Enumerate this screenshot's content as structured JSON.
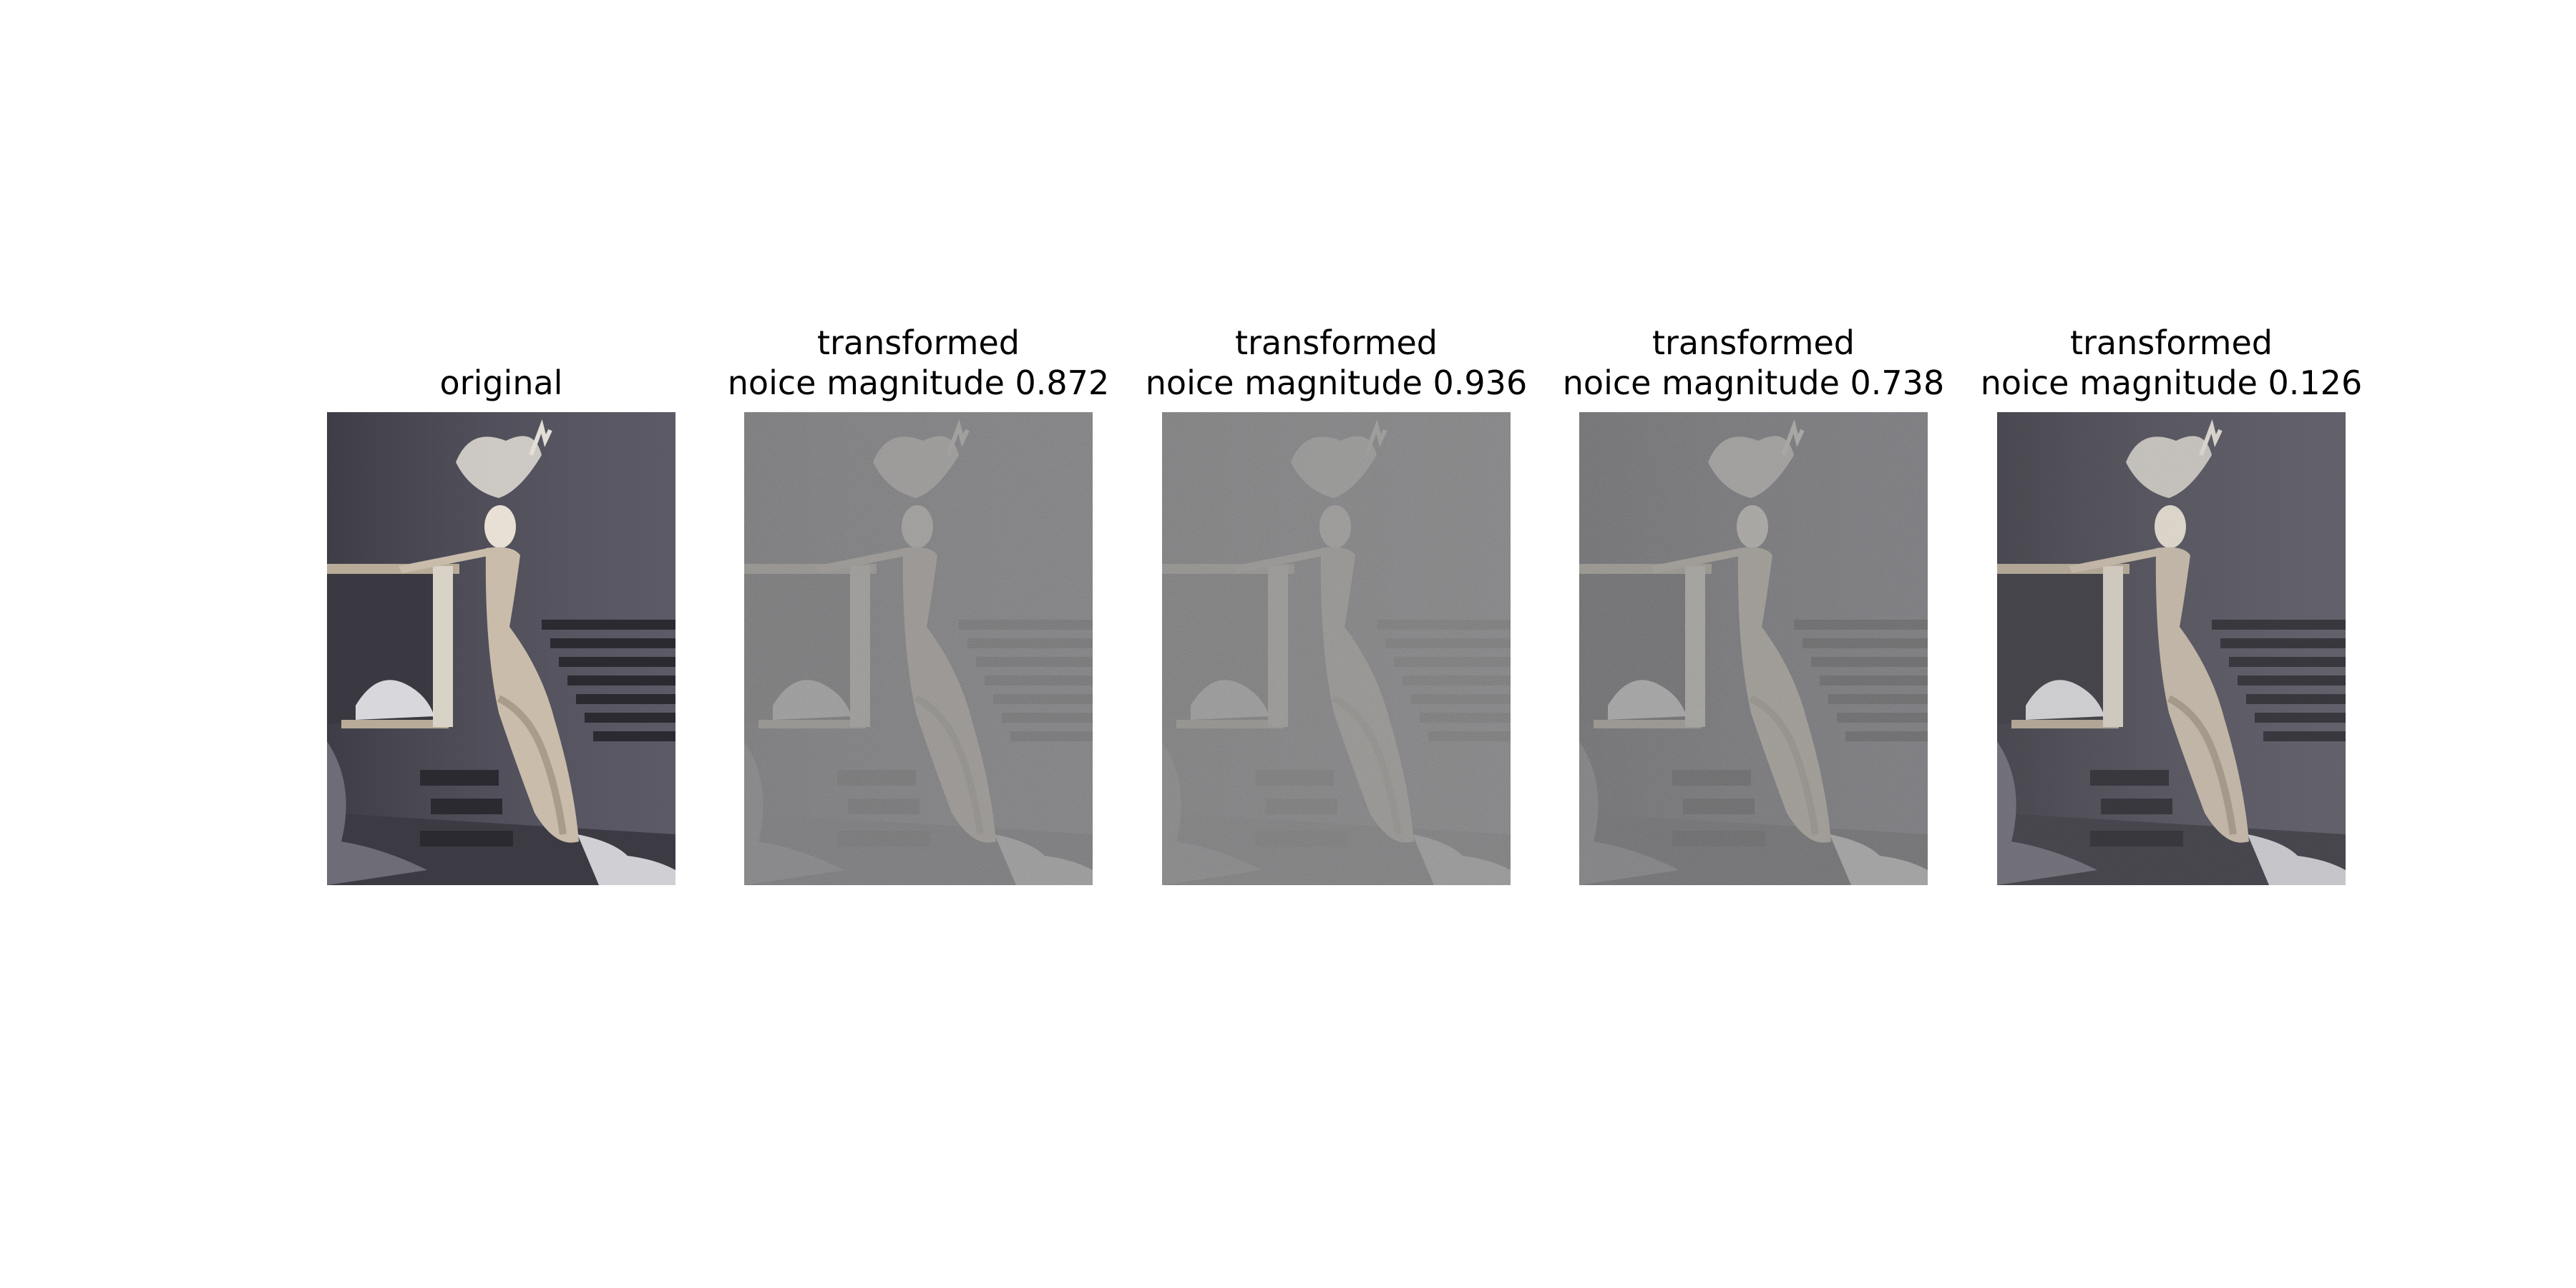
{
  "panels": [
    {
      "title_lines": [
        "original"
      ],
      "noise_magnitude": 0.0
    },
    {
      "title_lines": [
        "transformed",
        "noice magnitude 0.872"
      ],
      "noise_magnitude": 0.872
    },
    {
      "title_lines": [
        "transformed",
        "noice magnitude 0.936"
      ],
      "noise_magnitude": 0.936
    },
    {
      "title_lines": [
        "transformed",
        "noice magnitude 0.738"
      ],
      "noise_magnitude": 0.738
    },
    {
      "title_lines": [
        "transformed",
        "noice magnitude 0.126"
      ],
      "noise_magnitude": 0.126
    }
  ],
  "colors": {
    "background": "#ffffff",
    "wall": "#55535f",
    "floor": "#3c3b44",
    "figure": "#c9bcab",
    "stairs": "#2b2a31",
    "box": "#b8ab97",
    "fabric": "#d8d8dc",
    "noise_gray": "#808080"
  }
}
